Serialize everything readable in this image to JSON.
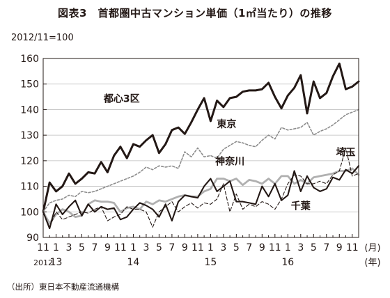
{
  "figure": {
    "title": "図表3　首都圏中古マンション単価（1㎡当たり）の推移",
    "base_note": "2012/11=100",
    "source": "（出所）東日本不動産流通機構"
  },
  "chart_data": {
    "type": "line",
    "ylim": [
      90,
      160
    ],
    "yticks": [
      90,
      100,
      110,
      120,
      130,
      140,
      150,
      160
    ],
    "x_tick_labels": [
      "11",
      "1",
      "3",
      "5",
      "7",
      "9",
      "11",
      "1",
      "3",
      "5",
      "7",
      "9",
      "11",
      "1",
      "3",
      "5",
      "7",
      "9",
      "11",
      "1",
      "3",
      "5",
      "7",
      "9",
      "11"
    ],
    "x_unit_label": "(月)",
    "year_labels": [
      {
        "index": 0,
        "label": "2012"
      },
      {
        "index": 2,
        "label": "13"
      },
      {
        "index": 14,
        "label": "14"
      },
      {
        "index": 26,
        "label": "15"
      },
      {
        "index": 38,
        "label": "16"
      }
    ],
    "year_unit_label": "(年)",
    "series": [
      {
        "name": "都心3区",
        "label_index": 15,
        "label_y": 143,
        "values": [
          100,
          111.5,
          108,
          110,
          115,
          111,
          113,
          115.5,
          115,
          119.5,
          115.5,
          122,
          125.5,
          121,
          126.5,
          125.5,
          128,
          130,
          123,
          126.5,
          132,
          133,
          130.5,
          135,
          140,
          144.5,
          135.5,
          143.5,
          141,
          144.5,
          145,
          147,
          147.5,
          147.5,
          148,
          150.5,
          145,
          140.5,
          145.5,
          148.5,
          153.5,
          138.5,
          151,
          144.5,
          146.5,
          153,
          158,
          148,
          149,
          151
        ]
      },
      {
        "name": "東京",
        "label_index": 30,
        "label_y": 133,
        "values": [
          100,
          103.5,
          104.5,
          105,
          106.5,
          106,
          108,
          107.5,
          108,
          109,
          110,
          111,
          112,
          113,
          114,
          115.5,
          117.5,
          116.5,
          118,
          117.5,
          118,
          117,
          123.5,
          121.5,
          125,
          121.5,
          122,
          121,
          124.5,
          126,
          127.5,
          127,
          126,
          125.5,
          128,
          130,
          128.5,
          133,
          132,
          132.5,
          133,
          135,
          130,
          131.5,
          132.5,
          134,
          136,
          138,
          139,
          140
        ]
      },
      {
        "name": "神奈川",
        "label_index": 29,
        "label_y": 118.5,
        "values": [
          100,
          95.5,
          99,
          101,
          100,
          98,
          98.5,
          103,
          104.5,
          104,
          104,
          103.5,
          100,
          101.5,
          102,
          101,
          104,
          103,
          104.5,
          104,
          105,
          106,
          106.5,
          106,
          106,
          108,
          109,
          113,
          113,
          112,
          113,
          110.5,
          112.5,
          112,
          111,
          113,
          111,
          114,
          114,
          111,
          112.5,
          111,
          113.5,
          114,
          114.5,
          115,
          116,
          116,
          117,
          114.5
        ]
      },
      {
        "name": "埼玉",
        "label_index": 47,
        "label_y": 122,
        "values": [
          100,
          94,
          100,
          97,
          98,
          99,
          100,
          99.5,
          101,
          102,
          96.5,
          98,
          99,
          102,
          101,
          101,
          100,
          94,
          100,
          102,
          104,
          100,
          102,
          103.5,
          101.5,
          103.5,
          103,
          105,
          111,
          100,
          107,
          101,
          103,
          102,
          104,
          103,
          101,
          105,
          111,
          114.5,
          114,
          111,
          111,
          112,
          111,
          114.5,
          116,
          125,
          114,
          115
        ]
      },
      {
        "name": "千葉",
        "label_index": 40,
        "label_y": 101,
        "values": [
          100,
          93.5,
          103,
          99,
          102,
          104.5,
          98.5,
          103,
          100,
          102,
          101,
          101.5,
          97,
          98,
          101,
          103.5,
          102.5,
          101,
          98,
          103,
          96.5,
          104,
          106.5,
          106,
          105.5,
          110,
          113,
          108,
          110,
          112,
          104,
          104,
          103.5,
          103,
          110,
          106,
          111,
          104.5,
          106.5,
          116,
          108,
          114,
          109.5,
          108,
          109,
          113.5,
          112.5,
          116.5,
          115,
          118
        ]
      }
    ]
  }
}
